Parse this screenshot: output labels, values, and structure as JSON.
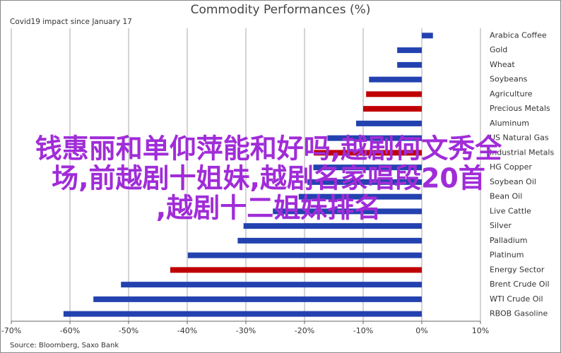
{
  "chart_data": {
    "type": "barh",
    "title": "Commodity Performances (%)",
    "subtitle": "Covid19 impact since January 17",
    "source": "Source: Bloomberg, Saxo Bank",
    "categories": [
      "Arabica Coffee",
      "Gold",
      "Wheat",
      "Soybeans",
      "Agriculture",
      "Precious Metals",
      "Aluminum",
      "US Natural Gas",
      "Industrial Metals",
      "HG Copper",
      "Soybean Oil",
      "Bean Oil",
      "Live Cattle",
      "Silver",
      "Palladium",
      "Platinum",
      "Energy Sector",
      "Brent Crude Oil",
      "WTI Crude Oil",
      "RBOB Gasoline"
    ],
    "values": [
      1.9,
      -4.2,
      -4.2,
      -9,
      -9.5,
      -10,
      -11.2,
      -16.1,
      -18.4,
      -18.5,
      -19.5,
      -21,
      -25.4,
      -30.4,
      -31.4,
      -39.9,
      -42.9,
      -51.3,
      -56,
      -61.1
    ],
    "colors": [
      "#2342b0",
      "#2342b0",
      "#2342b0",
      "#2342b0",
      "#c00000",
      "#c00000",
      "#2342b0",
      "#2342b0",
      "#c00000",
      "#2342b0",
      "#2342b0",
      "#2342b0",
      "#2342b0",
      "#2342b0",
      "#2342b0",
      "#2342b0",
      "#c00000",
      "#2342b0",
      "#2342b0",
      "#2342b0"
    ],
    "xlim": [
      -70,
      10
    ],
    "xticks": [
      {
        "value": -70,
        "label": "-70%"
      },
      {
        "value": -60,
        "label": "-60%"
      },
      {
        "value": -50,
        "label": "-50%"
      },
      {
        "value": -40,
        "label": "-40%"
      },
      {
        "value": -30,
        "label": "-30%"
      },
      {
        "value": -20,
        "label": "-20%"
      },
      {
        "value": -10,
        "label": "-10%"
      },
      {
        "value": 0,
        "label": "0%"
      },
      {
        "value": 10,
        "label": "10%"
      }
    ],
    "grid": true
  },
  "overlay": {
    "lines": [
      "钱惠丽和单仰萍能和好吗,越剧何文秀全",
      "场,前越剧十姐妹,越剧名家唱段20首",
      ",越剧十二姐妹排名"
    ]
  }
}
